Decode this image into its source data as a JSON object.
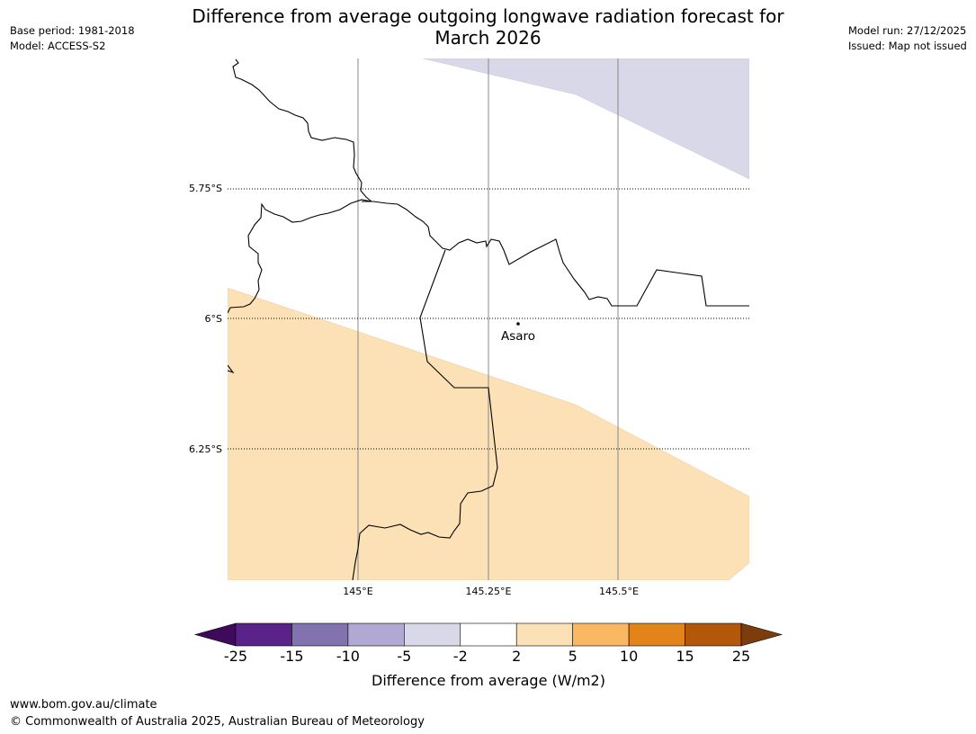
{
  "title": {
    "line1": "Difference from average outgoing longwave radiation forecast for",
    "line2": "March 2026"
  },
  "meta_left": {
    "base_period": "Base period: 1981-2018",
    "model": "Model: ACCESS-S2"
  },
  "meta_right": {
    "model_run": "Model run: 27/12/2025",
    "issued": "Issued: Map not issued"
  },
  "map": {
    "lat_labels": [
      "5.75°S",
      "6°S",
      "6.25°S"
    ],
    "lon_labels": [
      "145°E",
      "145.25°E",
      "145.5°E"
    ],
    "place": "Asaro",
    "fill_colors": {
      "negative_band": "#d8d8e9",
      "positive_band": "#fce0b6"
    }
  },
  "colorbar": {
    "labels": [
      "-25",
      "-15",
      "-10",
      "-5",
      "-2",
      "2",
      "5",
      "10",
      "15",
      "25"
    ],
    "colors": [
      "#3f0a5a",
      "#5a2389",
      "#8272b0",
      "#b1a8d3",
      "#d8d8e9",
      "#ffffff",
      "#fce0b6",
      "#fbb862",
      "#e2841a",
      "#b35808",
      "#7d3c0b"
    ],
    "label": "Difference from average (W/m2)"
  },
  "footer": {
    "url": "www.bom.gov.au/climate",
    "copyright": "© Commonwealth of Australia 2025, Australian Bureau of Meteorology"
  }
}
